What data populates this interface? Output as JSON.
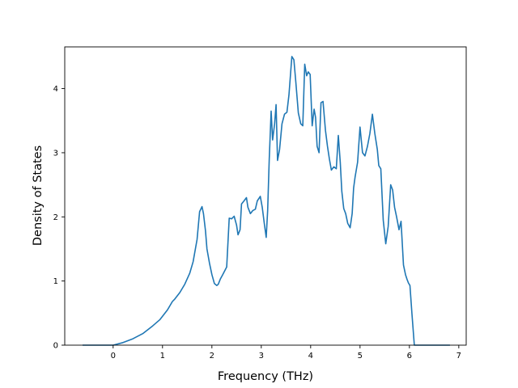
{
  "chart_data": {
    "type": "line",
    "title": "",
    "xlabel": "Frequency (THz)",
    "ylabel": "Density of States",
    "xlim": [
      -0.98,
      7.15
    ],
    "ylim": [
      0,
      4.65
    ],
    "xticks": [
      0,
      1,
      2,
      3,
      4,
      5,
      6,
      7
    ],
    "yticks": [
      0,
      1,
      2,
      3,
      4
    ],
    "grid": false,
    "legend": "none",
    "series": [
      {
        "color": "#1f77b4",
        "x": [
          -0.62,
          -0.3,
          0.0,
          0.2,
          0.4,
          0.6,
          0.8,
          0.95,
          1.1,
          1.2,
          1.25,
          1.35,
          1.45,
          1.55,
          1.62,
          1.7,
          1.75,
          1.8,
          1.83,
          1.87,
          1.9,
          1.95,
          2.0,
          2.05,
          2.1,
          2.13,
          2.17,
          2.22,
          2.3,
          2.35,
          2.4,
          2.45,
          2.5,
          2.53,
          2.57,
          2.6,
          2.65,
          2.7,
          2.73,
          2.78,
          2.83,
          2.88,
          2.92,
          2.98,
          3.02,
          3.06,
          3.1,
          3.13,
          3.16,
          3.2,
          3.23,
          3.27,
          3.3,
          3.33,
          3.37,
          3.42,
          3.47,
          3.52,
          3.56,
          3.62,
          3.66,
          3.7,
          3.75,
          3.8,
          3.84,
          3.88,
          3.92,
          3.95,
          3.99,
          4.03,
          4.07,
          4.1,
          4.13,
          4.17,
          4.21,
          4.25,
          4.3,
          4.34,
          4.38,
          4.42,
          4.47,
          4.52,
          4.56,
          4.6,
          4.63,
          4.67,
          4.71,
          4.75,
          4.8,
          4.84,
          4.87,
          4.9,
          4.95,
          5.0,
          5.05,
          5.1,
          5.15,
          5.2,
          5.25,
          5.3,
          5.35,
          5.38,
          5.42,
          5.47,
          5.52,
          5.57,
          5.62,
          5.66,
          5.7,
          5.74,
          5.79,
          5.83,
          5.88,
          5.92,
          5.95,
          5.98,
          6.01,
          6.05,
          6.1,
          6.15,
          6.18,
          6.2,
          6.22,
          6.3,
          6.82
        ],
        "values": [
          0.0,
          0.0,
          0.0,
          0.04,
          0.1,
          0.18,
          0.3,
          0.4,
          0.55,
          0.68,
          0.72,
          0.82,
          0.95,
          1.12,
          1.3,
          1.65,
          2.08,
          2.16,
          2.05,
          1.78,
          1.5,
          1.28,
          1.1,
          0.96,
          0.93,
          0.95,
          1.03,
          1.1,
          1.22,
          1.98,
          1.97,
          2.01,
          1.87,
          1.72,
          1.8,
          2.2,
          2.25,
          2.3,
          2.15,
          2.05,
          2.1,
          2.12,
          2.25,
          2.32,
          2.15,
          1.9,
          1.68,
          2.1,
          2.88,
          3.65,
          3.2,
          3.45,
          3.75,
          2.88,
          3.05,
          3.45,
          3.6,
          3.63,
          3.9,
          4.5,
          4.45,
          4.1,
          3.62,
          3.45,
          3.42,
          4.38,
          4.2,
          4.26,
          4.22,
          3.42,
          3.68,
          3.55,
          3.1,
          3.0,
          3.78,
          3.8,
          3.35,
          3.1,
          2.9,
          2.73,
          2.78,
          2.75,
          3.27,
          2.85,
          2.4,
          2.13,
          2.05,
          1.9,
          1.83,
          2.05,
          2.45,
          2.62,
          2.85,
          3.4,
          3.0,
          2.95,
          3.1,
          3.3,
          3.6,
          3.3,
          3.05,
          2.8,
          2.75,
          1.95,
          1.58,
          1.85,
          2.5,
          2.42,
          2.15,
          2.0,
          1.8,
          1.93,
          1.25,
          1.1,
          1.03,
          0.97,
          0.93,
          0.5,
          0.0,
          0.0,
          0.0,
          0.0,
          0.0,
          0.0,
          0.0
        ]
      }
    ]
  }
}
